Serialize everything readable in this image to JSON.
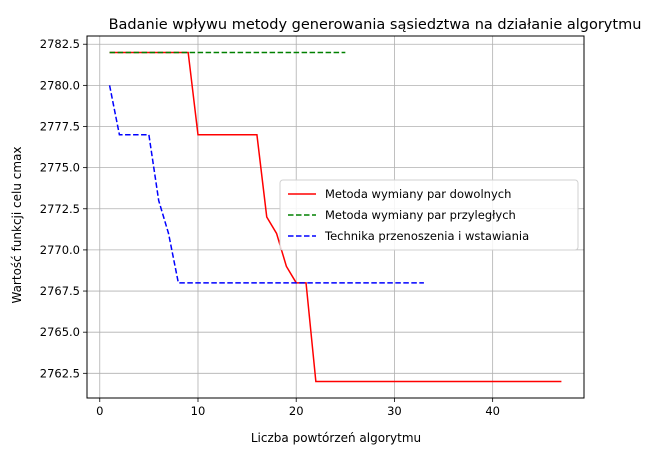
{
  "chart_data": {
    "type": "line",
    "title": "Badanie wpływu metody generowania sąsiedztwa na działanie algorytmu",
    "xlabel": "Liczba powtórzeń algorytmu",
    "ylabel": "Wartość funkcji celu cmax",
    "xlim": [
      -1.3,
      49.3
    ],
    "ylim": [
      2761.0,
      2783.0
    ],
    "xticks": [
      0,
      10,
      20,
      30,
      40
    ],
    "yticks": [
      "2762.5",
      "2765.0",
      "2767.5",
      "2770.0",
      "2772.5",
      "2775.0",
      "2777.5",
      "2780.0",
      "2782.5"
    ],
    "grid": true,
    "legend_position": "center-right",
    "series": [
      {
        "name": "Metoda wymiany par dowolnych",
        "color": "#ff0000",
        "dash": "solid",
        "points": [
          [
            1,
            2782
          ],
          [
            9,
            2782
          ],
          [
            10,
            2777
          ],
          [
            16,
            2777
          ],
          [
            17,
            2772
          ],
          [
            18,
            2771
          ],
          [
            19,
            2769
          ],
          [
            20,
            2768
          ],
          [
            21,
            2768
          ],
          [
            22,
            2762
          ],
          [
            47,
            2762
          ]
        ]
      },
      {
        "name": "Metoda wymiany par przyległych",
        "color": "#008000",
        "dash": "dashed",
        "points": [
          [
            1,
            2782
          ],
          [
            25,
            2782
          ]
        ]
      },
      {
        "name": "Technika przenoszenia i wstawiania",
        "color": "#0000ff",
        "dash": "dashed",
        "points": [
          [
            1,
            2780
          ],
          [
            2,
            2777
          ],
          [
            5,
            2777
          ],
          [
            6,
            2773
          ],
          [
            7,
            2771
          ],
          [
            8,
            2768
          ],
          [
            33,
            2768
          ]
        ]
      }
    ]
  }
}
